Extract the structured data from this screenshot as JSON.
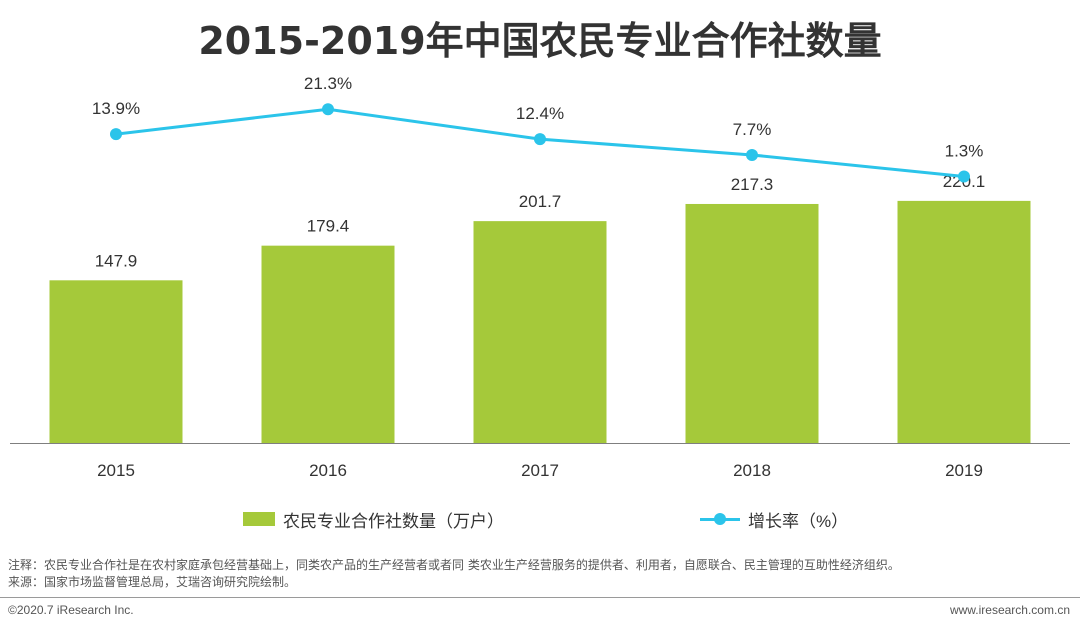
{
  "title": "2015-2019年中国农民专业合作社数量",
  "chart_data": {
    "type": "bar",
    "categories": [
      "2015",
      "2016",
      "2017",
      "2018",
      "2019"
    ],
    "series": [
      {
        "name": "农民专业合作社数量（万户）",
        "kind": "bar",
        "values": [
          147.9,
          179.4,
          201.7,
          217.3,
          220.1
        ],
        "labels": [
          "147.9",
          "179.4",
          "201.7",
          "217.3",
          "220.1"
        ],
        "ylim": [
          0,
          330
        ]
      },
      {
        "name": "增长率（%）",
        "kind": "line",
        "values": [
          13.9,
          21.3,
          12.4,
          7.7,
          1.3
        ],
        "labels": [
          "13.9%",
          "21.3%",
          "12.4%",
          "7.7%",
          "1.3%"
        ],
        "ylim": [
          -78,
          30
        ]
      }
    ],
    "colors": {
      "bar": "#a5c93a",
      "line": "#2bc4ea",
      "axis": "#7f7f7f",
      "text": "#333333"
    }
  },
  "legend": {
    "bar_label": "农民专业合作社数量（万户）",
    "line_label": "增长率（%）"
  },
  "notes": {
    "note": "注释：农民专业合作社是在农村家庭承包经营基础上，同类农产品的生产经营者或者同 类农业生产经营服务的提供者、利用者，自愿联合、民主管理的互助性经济组织。",
    "source": "来源：国家市场监督管理总局，艾瑞咨询研究院绘制。"
  },
  "footer": {
    "copyright": "©2020.7 iResearch Inc.",
    "website": "www.iresearch.com.cn"
  }
}
